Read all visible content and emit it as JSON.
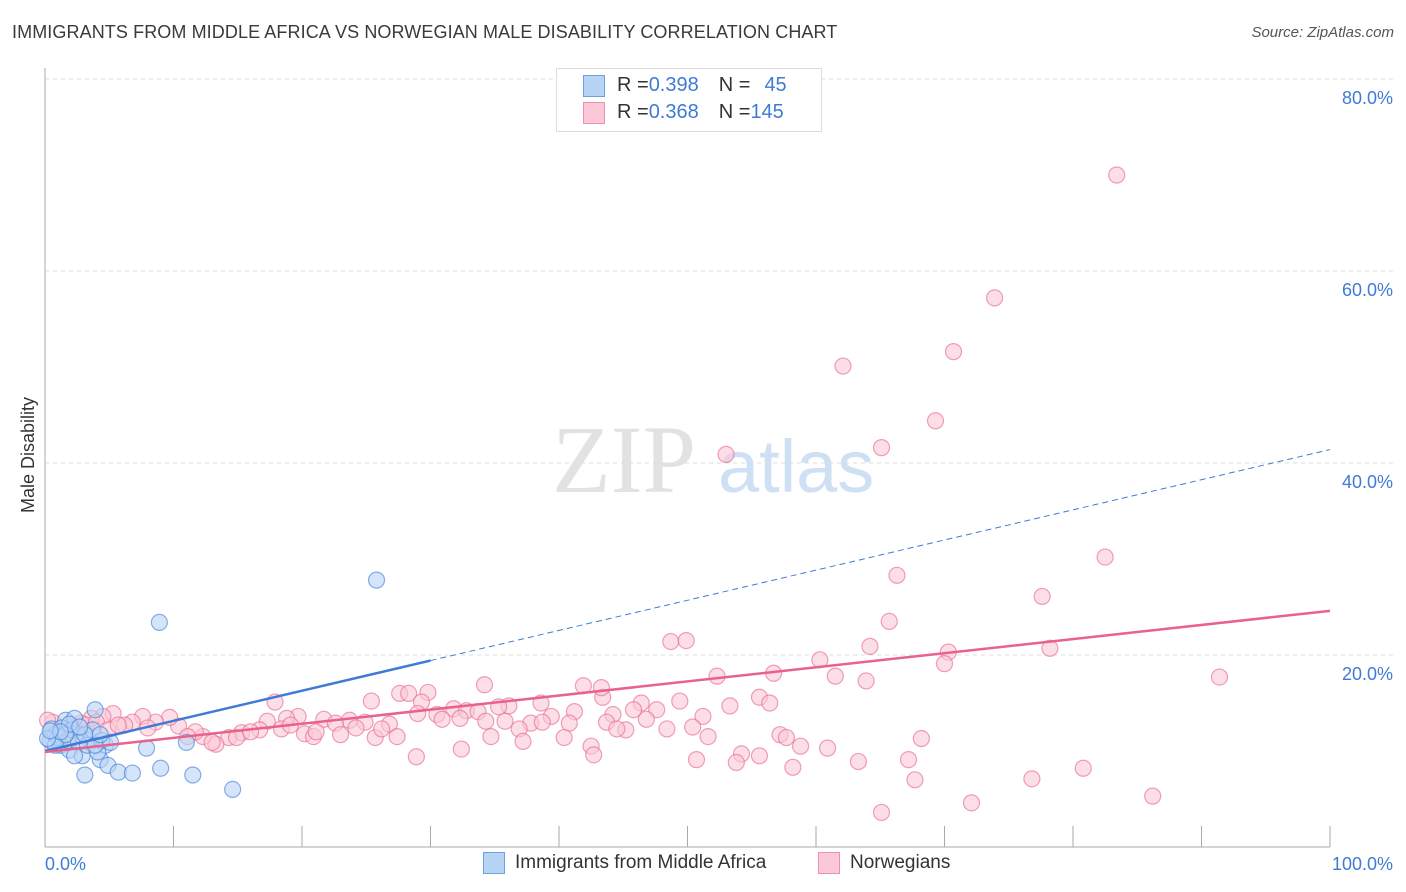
{
  "title": "IMMIGRANTS FROM MIDDLE AFRICA VS NORWEGIAN MALE DISABILITY CORRELATION CHART",
  "source": "Source: ZipAtlas.com",
  "watermark": "ZIPatlas",
  "legend": [
    {
      "r_label": "R = ",
      "r": "0.398",
      "n_label": "N = ",
      "n": "45",
      "color": "#b8d4f5",
      "stroke": "#6fa0e0"
    },
    {
      "r_label": "R = ",
      "r": "0.368",
      "n_label": "N = ",
      "n": "145",
      "color": "#fac8d6",
      "stroke": "#ee8fab"
    }
  ],
  "chart_data": {
    "type": "scatter",
    "title": "IMMIGRANTS FROM MIDDLE AFRICA VS NORWEGIAN MALE DISABILITY CORRELATION CHART",
    "xlabel": "",
    "ylabel": "Male Disability",
    "xlim": [
      0,
      100
    ],
    "ylim": [
      0,
      80
    ],
    "x_tick_labels": [
      "0.0%",
      "100.0%"
    ],
    "y_ticks": [
      20,
      40,
      60,
      80
    ],
    "y_tick_labels": [
      "20.0%",
      "40.0%",
      "60.0%",
      "80.0%"
    ],
    "grid": true,
    "legend_position": "bottom",
    "series": [
      {
        "name": "Immigrants from Middle Africa",
        "color": "#3f7bd6",
        "fill": "#b8d4f5",
        "trend": {
          "intercept": 10.0,
          "slope": 0.314,
          "solid_until": 30
        },
        "points": [
          [
            0.4,
            11.1
          ],
          [
            0.8,
            11.7
          ],
          [
            1.2,
            10.6
          ],
          [
            1.6,
            13.2
          ],
          [
            1.9,
            10.1
          ],
          [
            2.3,
            13.4
          ],
          [
            2.7,
            11.7
          ],
          [
            3.1,
            7.5
          ],
          [
            3.5,
            11.1
          ],
          [
            3.9,
            14.3
          ],
          [
            4.3,
            9.1
          ],
          [
            4.7,
            10.6
          ],
          [
            4.9,
            8.5
          ],
          [
            5.7,
            7.8
          ],
          [
            6.8,
            7.7
          ],
          [
            7.9,
            10.3
          ],
          [
            8.9,
            23.4
          ],
          [
            9.0,
            8.2
          ],
          [
            11.0,
            10.9
          ],
          [
            11.5,
            7.5
          ],
          [
            14.6,
            6.0
          ],
          [
            25.8,
            27.8
          ],
          [
            0.5,
            12.3
          ],
          [
            1.0,
            11.4
          ],
          [
            1.3,
            12.4
          ],
          [
            1.8,
            11.1
          ],
          [
            2.1,
            12.2
          ],
          [
            2.6,
            10.9
          ],
          [
            2.9,
            9.5
          ],
          [
            3.3,
            10.6
          ],
          [
            3.7,
            12.2
          ],
          [
            4.1,
            9.9
          ],
          [
            4.4,
            11.1
          ],
          [
            2.3,
            9.5
          ],
          [
            1.6,
            11.7
          ],
          [
            0.8,
            10.6
          ],
          [
            0.2,
            11.3
          ],
          [
            1.9,
            12.8
          ],
          [
            3.1,
            11.7
          ],
          [
            3.9,
            10.6
          ],
          [
            1.2,
            12.0
          ],
          [
            5.1,
            10.9
          ],
          [
            0.4,
            12.1
          ],
          [
            2.7,
            12.5
          ],
          [
            4.3,
            11.7
          ]
        ]
      },
      {
        "name": "Norwegians",
        "color": "#e8628c",
        "fill": "#fac8d6",
        "trend": {
          "intercept": 9.9,
          "slope": 0.147,
          "solid_until": 100
        },
        "points": [
          [
            83.4,
            70.0
          ],
          [
            73.9,
            57.2
          ],
          [
            70.7,
            51.6
          ],
          [
            62.1,
            50.1
          ],
          [
            69.3,
            44.4
          ],
          [
            65.1,
            41.6
          ],
          [
            53.0,
            40.9
          ],
          [
            82.5,
            30.2
          ],
          [
            66.3,
            28.3
          ],
          [
            77.6,
            26.1
          ],
          [
            65.7,
            23.5
          ],
          [
            48.7,
            21.4
          ],
          [
            49.9,
            21.5
          ],
          [
            64.2,
            20.9
          ],
          [
            70.3,
            20.3
          ],
          [
            78.2,
            20.7
          ],
          [
            60.3,
            19.5
          ],
          [
            70.0,
            19.1
          ],
          [
            56.7,
            18.1
          ],
          [
            61.5,
            17.8
          ],
          [
            63.9,
            17.3
          ],
          [
            91.4,
            17.7
          ],
          [
            52.3,
            17.8
          ],
          [
            34.2,
            16.9
          ],
          [
            43.4,
            15.6
          ],
          [
            41.9,
            16.8
          ],
          [
            43.3,
            16.6
          ],
          [
            27.6,
            16.0
          ],
          [
            28.3,
            16.0
          ],
          [
            29.8,
            16.1
          ],
          [
            25.4,
            15.2
          ],
          [
            17.9,
            15.1
          ],
          [
            38.6,
            15.0
          ],
          [
            49.4,
            15.2
          ],
          [
            55.6,
            15.6
          ],
          [
            56.4,
            15.0
          ],
          [
            46.4,
            15.0
          ],
          [
            53.3,
            14.7
          ],
          [
            36.1,
            14.7
          ],
          [
            31.8,
            14.4
          ],
          [
            29.3,
            15.1
          ],
          [
            32.8,
            14.2
          ],
          [
            33.7,
            14.1
          ],
          [
            35.3,
            14.6
          ],
          [
            41.2,
            14.1
          ],
          [
            47.6,
            14.3
          ],
          [
            44.2,
            13.8
          ],
          [
            45.8,
            14.3
          ],
          [
            30.5,
            13.8
          ],
          [
            39.4,
            13.6
          ],
          [
            51.2,
            13.6
          ],
          [
            46.8,
            13.3
          ],
          [
            35.8,
            13.1
          ],
          [
            37.8,
            12.9
          ],
          [
            40.8,
            12.9
          ],
          [
            43.7,
            13.0
          ],
          [
            26.8,
            12.8
          ],
          [
            23.7,
            13.2
          ],
          [
            21.7,
            13.3
          ],
          [
            19.7,
            13.6
          ],
          [
            18.8,
            13.4
          ],
          [
            17.3,
            13.1
          ],
          [
            22.6,
            12.9
          ],
          [
            24.9,
            13.0
          ],
          [
            30.9,
            13.3
          ],
          [
            32.3,
            13.4
          ],
          [
            36.9,
            12.3
          ],
          [
            38.7,
            13.0
          ],
          [
            50.4,
            12.5
          ],
          [
            48.4,
            12.3
          ],
          [
            45.2,
            12.2
          ],
          [
            57.2,
            11.7
          ],
          [
            57.7,
            11.4
          ],
          [
            51.6,
            11.5
          ],
          [
            68.2,
            11.3
          ],
          [
            58.8,
            10.5
          ],
          [
            60.9,
            10.3
          ],
          [
            54.2,
            9.7
          ],
          [
            55.6,
            9.5
          ],
          [
            42.5,
            10.5
          ],
          [
            42.7,
            9.6
          ],
          [
            44.5,
            12.3
          ],
          [
            50.7,
            9.1
          ],
          [
            53.8,
            8.8
          ],
          [
            58.2,
            8.3
          ],
          [
            63.3,
            8.9
          ],
          [
            67.2,
            9.1
          ],
          [
            67.7,
            7.0
          ],
          [
            76.8,
            7.1
          ],
          [
            80.8,
            8.2
          ],
          [
            72.1,
            4.6
          ],
          [
            65.1,
            3.6
          ],
          [
            86.2,
            5.3
          ],
          [
            32.4,
            10.2
          ],
          [
            28.9,
            9.4
          ],
          [
            37.2,
            11.0
          ],
          [
            34.7,
            11.5
          ],
          [
            27.4,
            11.5
          ],
          [
            25.7,
            11.4
          ],
          [
            26.2,
            12.3
          ],
          [
            20.2,
            11.8
          ],
          [
            20.9,
            11.5
          ],
          [
            18.4,
            12.3
          ],
          [
            16.7,
            12.2
          ],
          [
            15.3,
            11.9
          ],
          [
            14.3,
            11.4
          ],
          [
            13.3,
            10.7
          ],
          [
            12.3,
            11.5
          ],
          [
            11.7,
            12.0
          ],
          [
            10.4,
            12.6
          ],
          [
            9.7,
            13.5
          ],
          [
            8.6,
            13.0
          ],
          [
            7.6,
            13.6
          ],
          [
            6.8,
            13.0
          ],
          [
            6.2,
            12.7
          ],
          [
            5.3,
            13.9
          ],
          [
            4.5,
            13.6
          ],
          [
            3.6,
            13.4
          ],
          [
            2.8,
            12.9
          ],
          [
            2.0,
            12.5
          ],
          [
            1.3,
            12.4
          ],
          [
            0.6,
            13.0
          ],
          [
            0.2,
            13.2
          ],
          [
            0.9,
            11.7
          ],
          [
            1.6,
            11.9
          ],
          [
            2.4,
            12.2
          ],
          [
            3.2,
            12.7
          ],
          [
            4.0,
            13.0
          ],
          [
            4.9,
            12.2
          ],
          [
            5.7,
            12.7
          ],
          [
            8.0,
            12.4
          ],
          [
            11.1,
            11.5
          ],
          [
            13.0,
            10.9
          ],
          [
            14.9,
            11.4
          ],
          [
            16.0,
            12.0
          ],
          [
            23.0,
            11.7
          ],
          [
            24.2,
            12.4
          ],
          [
            21.1,
            12.0
          ],
          [
            19.1,
            12.7
          ],
          [
            29.0,
            13.9
          ],
          [
            40.4,
            11.4
          ],
          [
            34.3,
            13.1
          ]
        ]
      }
    ]
  }
}
